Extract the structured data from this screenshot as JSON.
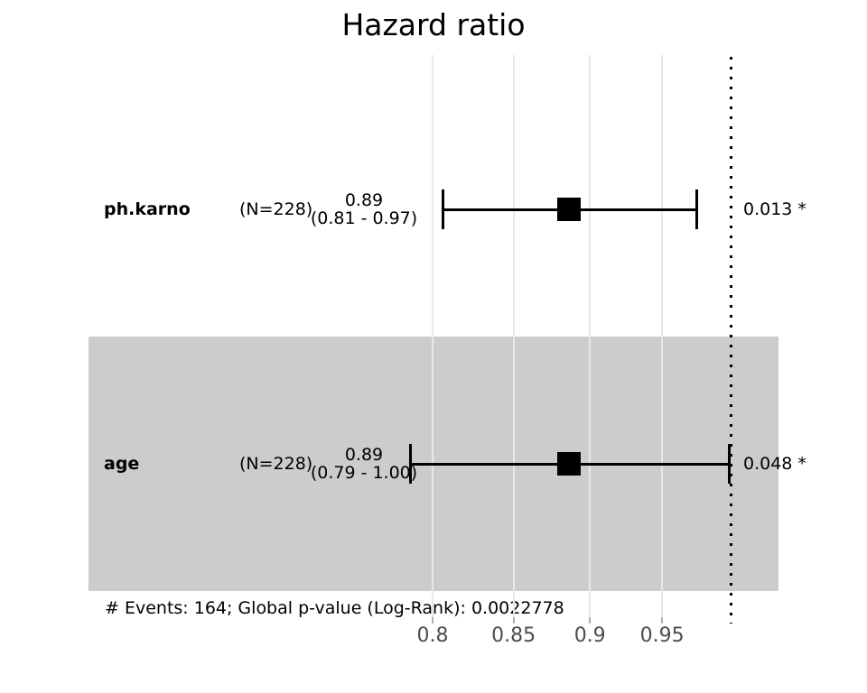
{
  "title": "Hazard ratio",
  "footer": "# Events: 164; Global p-value (Log-Rank): 0.0022778",
  "colors": {
    "ink": "#000000",
    "stripe_band": "#cccccc",
    "gridline": "#e8e8e8",
    "axis_tick": "#b0b0b0",
    "axis_label": "#4d4d4d"
  },
  "x_axis": {
    "scale": "log",
    "ticks": [
      {
        "value": 0.8,
        "label": "0.8"
      },
      {
        "value": 0.85,
        "label": "0.85"
      },
      {
        "value": 0.9,
        "label": "0.9"
      },
      {
        "value": 0.95,
        "label": "0.95"
      }
    ],
    "reference_line_value": 1.0
  },
  "chart_data": {
    "type": "forest",
    "title": "Hazard ratio",
    "xlabel": "",
    "xscale": "log",
    "xticks": [
      0.8,
      0.85,
      0.9,
      0.95
    ],
    "reference_value": 1.0,
    "grid": "vertical-only",
    "rows": [
      {
        "variable": "ph.karno",
        "n_label": "(N=228)",
        "n": 228,
        "estimate_label": "0.89",
        "ci_label": "(0.81 - 0.97)",
        "estimate": 0.886,
        "ci_low": 0.806,
        "ci_high": 0.975,
        "p_label": "0.013 *",
        "p_value": 0.013,
        "significant": true,
        "shaded": false
      },
      {
        "variable": "age",
        "n_label": "(N=228)",
        "n": 228,
        "estimate_label": "0.89",
        "ci_label": "(0.79 - 1.00)",
        "estimate": 0.886,
        "ci_low": 0.787,
        "ci_high": 0.999,
        "p_label": "0.048 *",
        "p_value": 0.048,
        "significant": true,
        "shaded": true
      }
    ],
    "footnote": "# Events: 164; Global p-value (Log-Rank): 0.0022778"
  }
}
